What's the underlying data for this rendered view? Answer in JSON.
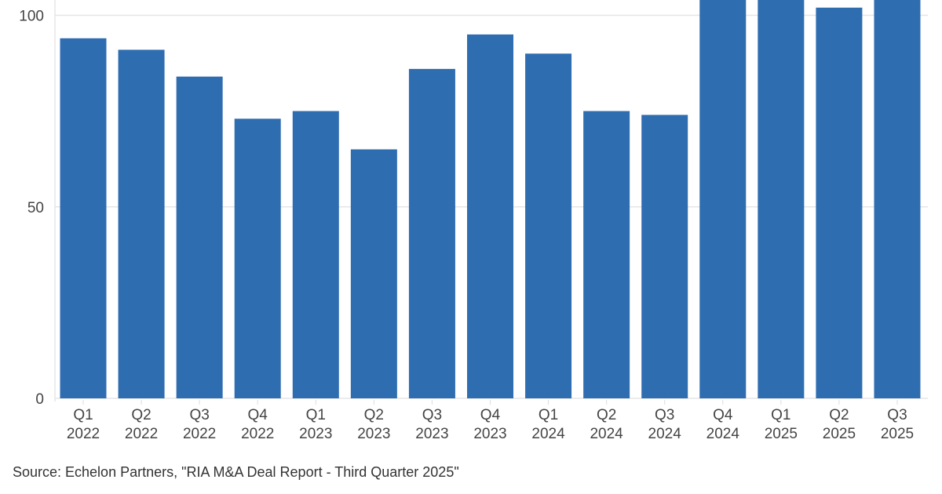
{
  "chart_data": {
    "type": "bar",
    "title": "",
    "xlabel": "",
    "ylabel": "",
    "categories": [
      [
        "Q1",
        "2022"
      ],
      [
        "Q2",
        "2022"
      ],
      [
        "Q3",
        "2022"
      ],
      [
        "Q4",
        "2022"
      ],
      [
        "Q1",
        "2023"
      ],
      [
        "Q2",
        "2023"
      ],
      [
        "Q3",
        "2023"
      ],
      [
        "Q4",
        "2023"
      ],
      [
        "Q1",
        "2024"
      ],
      [
        "Q2",
        "2024"
      ],
      [
        "Q3",
        "2024"
      ],
      [
        "Q4",
        "2024"
      ],
      [
        "Q1",
        "2025"
      ],
      [
        "Q2",
        "2025"
      ],
      [
        "Q3",
        "2025"
      ]
    ],
    "values": [
      94,
      91,
      84,
      73,
      75,
      65,
      86,
      95,
      90,
      75,
      74,
      104,
      104,
      102,
      104
    ],
    "ylim": [
      0,
      104
    ],
    "yticks": [
      "0",
      "50",
      "100"
    ],
    "grid": true,
    "bar_color": "#2f6db1",
    "note": "Bars for Q4 2024, Q1 2025 and Q3 2025 extend beyond the top of the visible area"
  },
  "source": "Source: Echelon Partners, \"RIA M&A Deal Report - Third Quarter 2025\""
}
